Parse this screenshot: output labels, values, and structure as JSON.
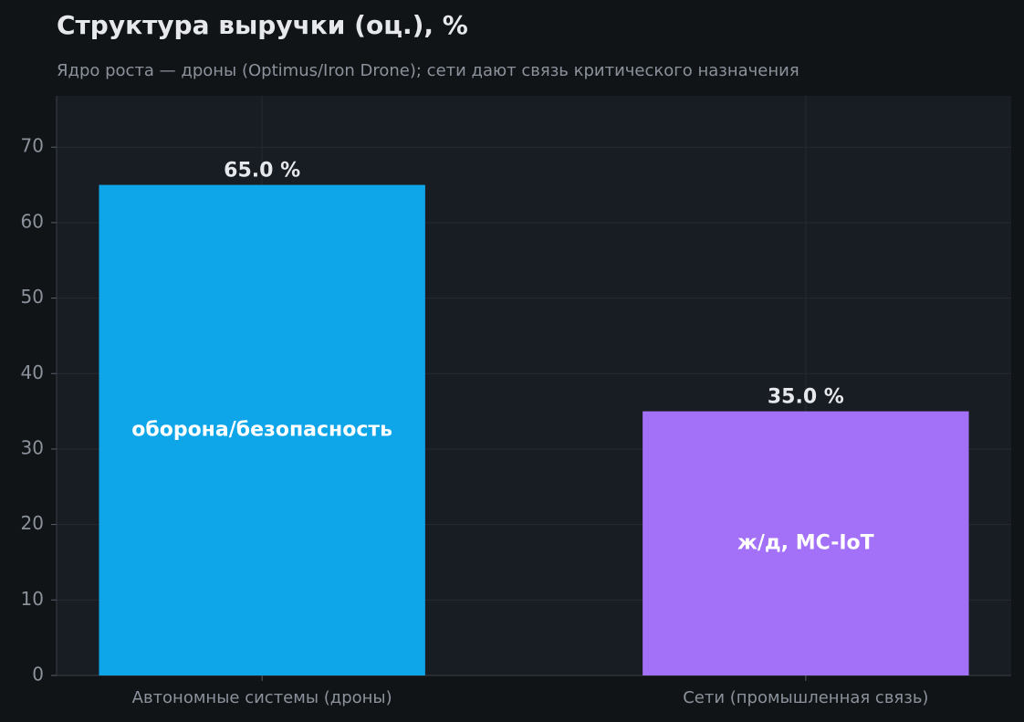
{
  "chart_data": {
    "type": "bar",
    "title": "Структура выручки (оц.), %",
    "subtitle": "Ядро роста — дроны (Optimus/Iron Drone); сети дают связь критического назначения",
    "categories": [
      "Автономные системы (дроны)",
      "Сети (промышленная связь)"
    ],
    "values": [
      65.0,
      35.0
    ],
    "value_labels": [
      "65.0 %",
      "35.0 %"
    ],
    "inner_labels": [
      "оборона/безопасность",
      "ж/д, MC-IoT"
    ],
    "colors": [
      "#0ea5e9",
      "#a371f7"
    ],
    "ylim": [
      0,
      76.8
    ],
    "yticks": [
      0,
      10,
      20,
      30,
      40,
      50,
      60,
      70
    ],
    "grid": true
  }
}
